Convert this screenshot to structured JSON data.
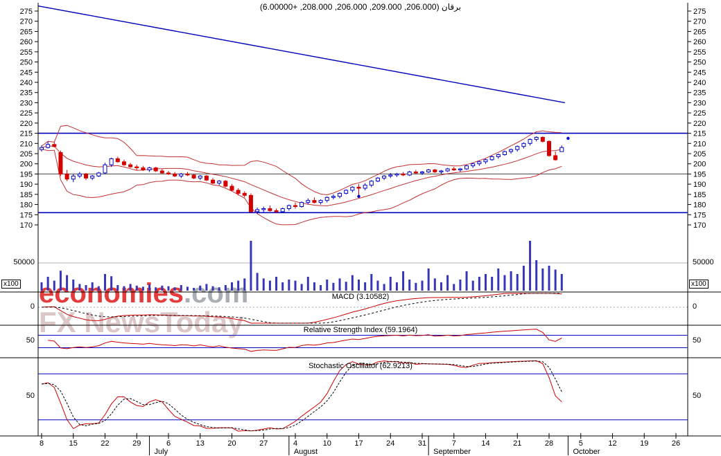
{
  "title": {
    "symbol": "برقان",
    "values": "(206.000, 209.000, 206.000, 208.000, +6.00000)"
  },
  "watermark": {
    "brand": "economies",
    "domain": ".com",
    "tagline": "FX NewsToday"
  },
  "panels": {
    "volume": {
      "gridline_label": "50000",
      "unit_label": "x100"
    },
    "macd": {
      "label": "MACD (3.10582)",
      "value": 3.10582,
      "zero_label": "0"
    },
    "rsi": {
      "label": "Relative Strength Index (59.1964)",
      "value": 59.1964,
      "mid_label": "50"
    },
    "stochastic": {
      "label": "Stochastic Oscillator (62.9213)",
      "value": 62.9213,
      "mid_label": "50"
    }
  },
  "chart_data": {
    "type": "candlestick",
    "symbol": "برقان",
    "last": {
      "open": 206.0,
      "high": 209.0,
      "low": 206.0,
      "close": 208.0,
      "change": 6.0
    },
    "price_axis": {
      "min": 170,
      "max": 275,
      "step": 5
    },
    "volume_axis": {
      "gridline": 50000,
      "unit": "x100"
    },
    "levels": {
      "resistance": 215,
      "support": 176,
      "pivot": 195
    },
    "trendline": {
      "from_index": -0.5,
      "from_price": 277.5,
      "to_index": 82.5,
      "to_price": 230
    },
    "indicators": {
      "macd": 3.10582,
      "rsi": 59.1964,
      "stochastic": 62.9213,
      "rsi_levels": [
        30,
        70
      ],
      "stochastic_levels": [
        20,
        80
      ]
    },
    "x_axis": {
      "ticks": [
        {
          "i": 0,
          "label": "8"
        },
        {
          "i": 5,
          "label": "15"
        },
        {
          "i": 10,
          "label": "22"
        },
        {
          "i": 15,
          "label": "29"
        },
        {
          "i": 20,
          "label": "6"
        },
        {
          "i": 25,
          "label": "13"
        },
        {
          "i": 30,
          "label": "20"
        },
        {
          "i": 35,
          "label": "27"
        },
        {
          "i": 40,
          "label": "4"
        },
        {
          "i": 45,
          "label": "10"
        },
        {
          "i": 50,
          "label": "17"
        },
        {
          "i": 55,
          "label": "24"
        },
        {
          "i": 60,
          "label": "31"
        },
        {
          "i": 65,
          "label": "7"
        },
        {
          "i": 70,
          "label": "14"
        },
        {
          "i": 75,
          "label": "21"
        },
        {
          "i": 80,
          "label": "28"
        },
        {
          "i": 85,
          "label": "5"
        },
        {
          "i": 90,
          "label": "12"
        },
        {
          "i": 95,
          "label": "19"
        },
        {
          "i": 100,
          "label": "26"
        }
      ],
      "months": [
        {
          "label": "July",
          "i": 17
        },
        {
          "label": "August",
          "i": 39
        },
        {
          "label": "September",
          "i": 61
        },
        {
          "label": "October",
          "i": 83
        }
      ]
    },
    "candles": [
      [
        207,
        209,
        206,
        208
      ],
      [
        208,
        211,
        207.5,
        209.5
      ],
      [
        209.5,
        210.5,
        208,
        208.5
      ],
      [
        205.5,
        206.5,
        194,
        195
      ],
      [
        195,
        197,
        191.5,
        192.5
      ],
      [
        192.5,
        195,
        191,
        194
      ],
      [
        194,
        196,
        193,
        195
      ],
      [
        195,
        195.5,
        192,
        193
      ],
      [
        193,
        194.5,
        192,
        194
      ],
      [
        194,
        196,
        193.5,
        195.5
      ],
      [
        195.5,
        200.5,
        195,
        199.5
      ],
      [
        199.5,
        203,
        198.5,
        202.5
      ],
      [
        202.5,
        203.5,
        200.5,
        201
      ],
      [
        201,
        202,
        199,
        199.5
      ],
      [
        199.5,
        200.5,
        198,
        198.5
      ],
      [
        198.5,
        199.5,
        197,
        198
      ],
      [
        198,
        199,
        196.5,
        197
      ],
      [
        197,
        198.5,
        196,
        198
      ],
      [
        198,
        198.5,
        196,
        196.5
      ],
      [
        196.5,
        197.5,
        195,
        195.5
      ],
      [
        195.5,
        196.5,
        194.5,
        195
      ],
      [
        195,
        196,
        193.5,
        194
      ],
      [
        194,
        195.5,
        193,
        195
      ],
      [
        195,
        196,
        194,
        194.5
      ],
      [
        194.5,
        195,
        192.5,
        193
      ],
      [
        193,
        194.5,
        192,
        194
      ],
      [
        194,
        194.5,
        191.5,
        192
      ],
      [
        192,
        193,
        190,
        190.5
      ],
      [
        190.5,
        192,
        189.5,
        191.5
      ],
      [
        191.5,
        192,
        188.5,
        189
      ],
      [
        189,
        190,
        186.5,
        187
      ],
      [
        187,
        188,
        184.5,
        185.5
      ],
      [
        185.5,
        186.5,
        183.5,
        184.5
      ],
      [
        184.5,
        185.5,
        176,
        176.5
      ],
      [
        176.5,
        178.5,
        175.5,
        177.5
      ],
      [
        177.5,
        179,
        176,
        178
      ],
      [
        178,
        179.5,
        176.5,
        177
      ],
      [
        177,
        178,
        175.8,
        176.5
      ],
      [
        176.5,
        178.5,
        176,
        178
      ],
      [
        178,
        180,
        177,
        179.5
      ],
      [
        179.5,
        181,
        178,
        179
      ],
      [
        179,
        181.5,
        178.5,
        181
      ],
      [
        181,
        183,
        180,
        182
      ],
      [
        182,
        183.5,
        180.5,
        181
      ],
      [
        181,
        182.5,
        180,
        182
      ],
      [
        182,
        184,
        181,
        183.5
      ],
      [
        183.5,
        185,
        182.5,
        184
      ],
      [
        184,
        186,
        183,
        185.5
      ],
      [
        185.5,
        187.5,
        185,
        187
      ],
      [
        187,
        189,
        186,
        188.5
      ],
      [
        188.5,
        190,
        184,
        188
      ],
      [
        188,
        190.5,
        187,
        189.5
      ],
      [
        189.5,
        192,
        188.5,
        191.5
      ],
      [
        191.5,
        193.5,
        191,
        193
      ],
      [
        193,
        194.5,
        192,
        194
      ],
      [
        194,
        195.5,
        193,
        194.5
      ],
      [
        194.5,
        195.5,
        193.5,
        195
      ],
      [
        195,
        196,
        194,
        194.5
      ],
      [
        194.5,
        196.5,
        194,
        196
      ],
      [
        196,
        197,
        195,
        195.5
      ],
      [
        195.5,
        196.5,
        194.5,
        196
      ],
      [
        196,
        197.5,
        195.5,
        197
      ],
      [
        197,
        197.5,
        195.5,
        196
      ],
      [
        196,
        197,
        195,
        196.5
      ],
      [
        196.5,
        198,
        196,
        197.5
      ],
      [
        197.5,
        198.5,
        196.5,
        197
      ],
      [
        197,
        198,
        196,
        197.5
      ],
      [
        197.5,
        199.5,
        197,
        199
      ],
      [
        199,
        200.5,
        198,
        200
      ],
      [
        200,
        201.5,
        199,
        201
      ],
      [
        201,
        202.5,
        200,
        202
      ],
      [
        202,
        204,
        201.5,
        203.5
      ],
      [
        203.5,
        205,
        202.5,
        204.5
      ],
      [
        204.5,
        206.5,
        204,
        206
      ],
      [
        206,
        207.5,
        205,
        207
      ],
      [
        207,
        209,
        206,
        208.5
      ],
      [
        208.5,
        210.5,
        207.5,
        210
      ],
      [
        210,
        212.5,
        209,
        212
      ],
      [
        212,
        213.5,
        211,
        213
      ],
      [
        213,
        213.5,
        210.5,
        211
      ],
      [
        211,
        211.5,
        203.5,
        204
      ],
      [
        204,
        206,
        201.5,
        202
      ],
      [
        206,
        209,
        206,
        208
      ]
    ],
    "volumes": [
      15000,
      25000,
      18000,
      36000,
      28000,
      20000,
      12000,
      10000,
      15000,
      8000,
      30000,
      26000,
      10000,
      8000,
      12000,
      9000,
      7000,
      11000,
      6000,
      9000,
      8000,
      6000,
      10000,
      7000,
      5000,
      9000,
      12000,
      8000,
      6000,
      10000,
      15000,
      18000,
      22000,
      90000,
      32000,
      22000,
      18000,
      25000,
      15000,
      20000,
      18000,
      12000,
      25000,
      15000,
      10000,
      20000,
      14000,
      22000,
      16000,
      28000,
      20000,
      15000,
      30000,
      18000,
      12000,
      25000,
      15000,
      35000,
      20000,
      14000,
      18000,
      40000,
      22000,
      15000,
      28000,
      12000,
      20000,
      35000,
      18000,
      25000,
      30000,
      25000,
      40000,
      28000,
      35000,
      30000,
      45000,
      90000,
      55000,
      40000,
      45000,
      38000,
      30000
    ],
    "dots": [
      {
        "index": 50,
        "price": 184
      },
      {
        "index": 83,
        "price": 212.5
      }
    ],
    "colors": {
      "up": "#0000c8",
      "down": "#d40000",
      "volume": "#3636b6",
      "band": "#c23232",
      "level": "#0000c0",
      "pivot": "#444444",
      "trend": "#0000bb",
      "macd": "#cc0000",
      "signal": "#000000",
      "rsi": "#cc0000",
      "stoch_k": "#cc0000",
      "stoch_d": "#000000"
    }
  }
}
